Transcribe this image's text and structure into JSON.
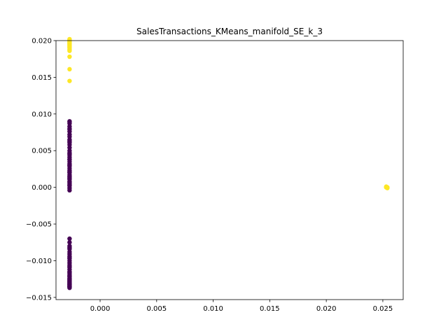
{
  "chart_data": {
    "type": "scatter",
    "title": "SalesTransactions_KMeans_manifold_SE_k_3",
    "xlabel": "",
    "ylabel": "",
    "xlim": [
      -0.0039,
      0.0268
    ],
    "ylim": [
      -0.0153,
      0.02
    ],
    "grid": false,
    "x_ticks": [
      {
        "value": 0.0,
        "label": "0.000"
      },
      {
        "value": 0.005,
        "label": "0.005"
      },
      {
        "value": 0.01,
        "label": "0.010"
      },
      {
        "value": 0.015,
        "label": "0.015"
      },
      {
        "value": 0.02,
        "label": "0.020"
      },
      {
        "value": 0.025,
        "label": "0.025"
      }
    ],
    "y_ticks": [
      {
        "value": -0.015,
        "label": "−0.015"
      },
      {
        "value": -0.01,
        "label": "−0.010"
      },
      {
        "value": -0.005,
        "label": "−0.005"
      },
      {
        "value": 0.0,
        "label": "0.000"
      },
      {
        "value": 0.005,
        "label": "0.005"
      },
      {
        "value": 0.01,
        "label": "0.010"
      },
      {
        "value": 0.015,
        "label": "0.015"
      },
      {
        "value": 0.02,
        "label": "0.020"
      }
    ],
    "colors": {
      "cluster_purple": "#440154",
      "cluster_teal": "#21918c",
      "cluster_yellow": "#fde725"
    },
    "series": [
      {
        "color": "#fde725",
        "x": [
          -0.0027,
          -0.0027,
          -0.0027,
          -0.0027,
          -0.0027,
          -0.0027,
          -0.0027,
          -0.0027,
          -0.0027,
          -0.0027,
          -0.0027,
          -0.0027,
          -0.0027,
          -0.0027,
          -0.0027,
          -0.0027,
          -0.0027,
          -0.0027
        ],
        "y": [
          0.0202,
          0.0201,
          0.02,
          0.0199,
          0.0198,
          0.0197,
          0.0196,
          0.0195,
          0.0194,
          0.0193,
          0.0192,
          0.0191,
          0.019,
          0.0188,
          0.0186,
          0.0178,
          0.0161,
          0.0145
        ]
      },
      {
        "color": "#fde725",
        "x": [
          0.0253,
          0.0253,
          0.0254,
          0.0254,
          0.0253
        ],
        "y": [
          0.0,
          0.0001,
          0.0,
          -0.0001,
          0.0
        ]
      },
      {
        "color": "#440154",
        "x": [
          -0.0027,
          -0.0027,
          -0.0027,
          -0.0027,
          -0.0027,
          -0.0027,
          -0.0027,
          -0.0027,
          -0.0027,
          -0.0027,
          -0.0027,
          -0.0027,
          -0.0027,
          -0.0027,
          -0.0027,
          -0.0027,
          -0.0027,
          -0.0027,
          -0.0027,
          -0.0027,
          -0.0027,
          -0.0027,
          -0.0027,
          -0.0027,
          -0.0027,
          -0.0027,
          -0.0027,
          -0.0027,
          -0.0027,
          -0.0027,
          -0.0027,
          -0.0027,
          -0.0027,
          -0.0027,
          -0.0027,
          -0.0027,
          -0.0027,
          -0.0027,
          -0.0027,
          -0.0027,
          -0.0027,
          -0.0027,
          -0.0027,
          -0.0027,
          -0.0027,
          -0.0027,
          -0.0027,
          -0.0027,
          -0.0027,
          -0.0027,
          -0.0027,
          -0.0027,
          -0.0027,
          -0.0027,
          -0.0027,
          -0.0027,
          -0.0027,
          -0.0027,
          -0.0027,
          -0.0027,
          -0.0027,
          -0.0027,
          -0.0027,
          -0.0027,
          -0.0027,
          -0.0027,
          -0.0027,
          -0.0027,
          -0.0027,
          -0.0027,
          -0.0027,
          -0.0027,
          -0.0027,
          -0.0027,
          -0.0027,
          -0.0027,
          -0.0027,
          -0.0027,
          -0.0027,
          -0.0027
        ],
        "y": [
          0.009,
          0.0087,
          0.0083,
          0.0079,
          0.0076,
          0.0072,
          0.0069,
          0.0065,
          0.0061,
          0.0058,
          0.0054,
          0.005,
          0.0047,
          0.0044,
          0.0041,
          0.0038,
          0.0035,
          0.0032,
          0.0029,
          0.0026,
          0.0023,
          0.002,
          0.0017,
          0.0014,
          0.0011,
          0.0008,
          0.0005,
          0.0002,
          -0.0001,
          -0.0004,
          -0.007,
          -0.0075,
          -0.008,
          -0.0084,
          -0.0088,
          -0.0091,
          -0.0094,
          -0.0097,
          -0.01,
          -0.0103,
          -0.0106,
          -0.0109,
          -0.0112,
          -0.0115,
          -0.0118,
          -0.012,
          -0.0122,
          -0.0124,
          -0.0126,
          -0.0127,
          -0.0128,
          -0.0129,
          -0.013,
          -0.0131,
          -0.0132,
          -0.0133,
          -0.0134,
          -0.0135,
          -0.0136,
          -0.0137,
          0.0089,
          0.008,
          0.0063,
          0.0046,
          0.0038,
          0.003,
          0.0021,
          0.0012,
          0.0003,
          -0.0082,
          -0.0096,
          -0.0108,
          -0.0116,
          -0.0121,
          -0.0125,
          -0.0129,
          -0.0132,
          -0.0135,
          0.0015,
          0.0007
        ]
      }
    ]
  }
}
